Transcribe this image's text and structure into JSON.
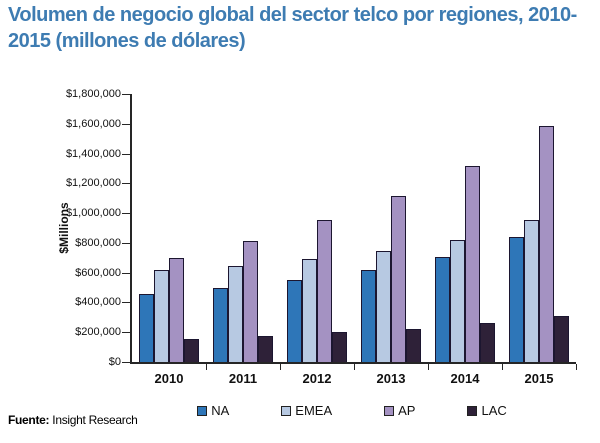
{
  "title": "Volumen de negocio global del sector telco por regiones, 2010-2015 (millones de dólares)",
  "source": {
    "label": "Fuente:",
    "value": "Insight Research"
  },
  "colors": {
    "title_blue": "#3e7cb2",
    "axis": "#262626",
    "bar_border": "#1c1630"
  },
  "chart_data": {
    "type": "bar",
    "title": "Volumen de negocio global del sector telco por regiones, 2010-2015 (millones de dólares)",
    "xlabel": "",
    "ylabel": "$Millions",
    "ylim": [
      0,
      1800000
    ],
    "ytick_step": 200000,
    "ytick_labels": [
      "$1,800,000",
      "$1,600,000",
      "$1,400,000",
      "$1,200,000",
      "$1,000,000",
      "$800,000",
      "$600,000",
      "$400,000",
      "$200,000",
      "$0"
    ],
    "grid": false,
    "legend_position": "bottom",
    "categories": [
      "2010",
      "2011",
      "2012",
      "2013",
      "2014",
      "2015"
    ],
    "series": [
      {
        "name": "NA",
        "color": "#2e76b8",
        "values": [
          460000,
          495000,
          550000,
          615000,
          705000,
          840000
        ]
      },
      {
        "name": "EMEA",
        "color": "#b7c9e2",
        "values": [
          620000,
          645000,
          690000,
          745000,
          820000,
          955000
        ]
      },
      {
        "name": "AP",
        "color": "#a492c2",
        "values": [
          700000,
          810000,
          955000,
          1115000,
          1320000,
          1585000
        ]
      },
      {
        "name": "LAC",
        "color": "#2e2138",
        "values": [
          155000,
          175000,
          200000,
          220000,
          265000,
          310000
        ]
      }
    ]
  }
}
